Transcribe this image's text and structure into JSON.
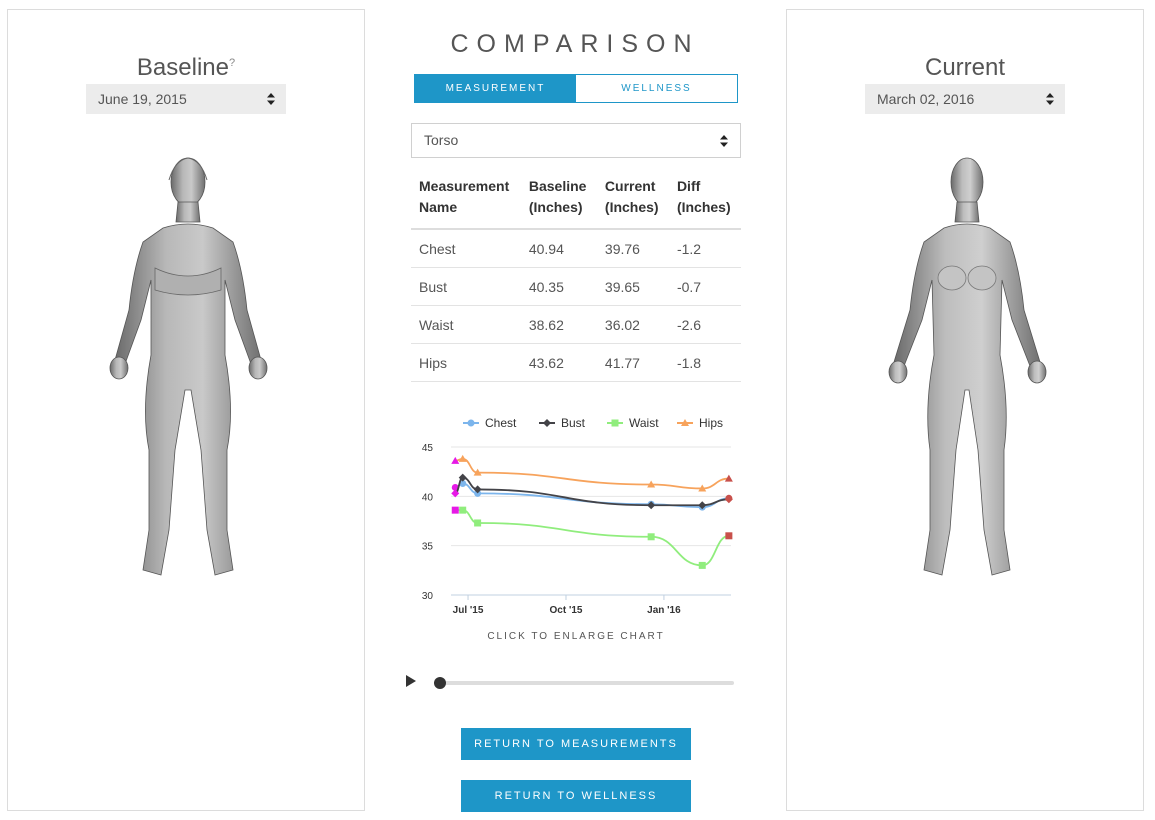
{
  "baseline": {
    "title": "Baseline",
    "help_mark": "?",
    "date": "June 19, 2015"
  },
  "current": {
    "title": "Current",
    "date": "March 02, 2016"
  },
  "comparison": {
    "title": "COMPARISON",
    "tabs": [
      {
        "label": "MEASUREMENT",
        "active": true
      },
      {
        "label": "WELLNESS",
        "active": false
      }
    ],
    "region": "Torso"
  },
  "table": {
    "headers": [
      [
        "Measurement",
        "Name"
      ],
      [
        "Baseline",
        "(Inches)"
      ],
      [
        "Current",
        "(Inches)"
      ],
      [
        "Diff",
        "(Inches)"
      ]
    ],
    "rows": [
      [
        "Chest",
        "40.94",
        "39.76",
        "-1.2"
      ],
      [
        "Bust",
        "40.35",
        "39.65",
        "-0.7"
      ],
      [
        "Waist",
        "38.62",
        "36.02",
        "-2.6"
      ],
      [
        "Hips",
        "43.62",
        "41.77",
        "-1.8"
      ]
    ]
  },
  "chart_data": {
    "type": "line",
    "x_ticks": [
      "Jul '15",
      "Oct '15",
      "Jan '16"
    ],
    "y_ticks": [
      "45",
      "40",
      "35",
      "30"
    ],
    "ylim": [
      30,
      45
    ],
    "grid": true,
    "legend_position": "top",
    "series": [
      {
        "name": "Chest",
        "color": "#7cb5ec",
        "marker": "circle",
        "points": [
          [
            "2015-06-19",
            40.9
          ],
          [
            "2015-06-26",
            41.3
          ],
          [
            "2015-07-10",
            40.3
          ],
          [
            "2015-12-20",
            39.2
          ],
          [
            "2016-02-06",
            38.9
          ],
          [
            "2016-03-02",
            39.8
          ]
        ]
      },
      {
        "name": "Bust",
        "color": "#434348",
        "marker": "diamond",
        "points": [
          [
            "2015-06-19",
            40.3
          ],
          [
            "2015-06-26",
            41.9
          ],
          [
            "2015-07-10",
            40.7
          ],
          [
            "2015-12-20",
            39.1
          ],
          [
            "2016-02-06",
            39.1
          ],
          [
            "2016-03-02",
            39.7
          ]
        ]
      },
      {
        "name": "Waist",
        "color": "#90ed7d",
        "marker": "square",
        "points": [
          [
            "2015-06-19",
            38.6
          ],
          [
            "2015-06-26",
            38.6
          ],
          [
            "2015-07-10",
            37.3
          ],
          [
            "2015-12-20",
            35.9
          ],
          [
            "2016-02-06",
            33.0
          ],
          [
            "2016-03-02",
            36.0
          ]
        ]
      },
      {
        "name": "Hips",
        "color": "#f7a35c",
        "marker": "triangle",
        "points": [
          [
            "2015-06-19",
            43.6
          ],
          [
            "2015-06-26",
            43.8
          ],
          [
            "2015-07-10",
            42.4
          ],
          [
            "2015-12-20",
            41.2
          ],
          [
            "2016-02-06",
            40.8
          ],
          [
            "2016-03-02",
            41.8
          ]
        ]
      }
    ],
    "baseline_marker_color": "#e619e6",
    "current_marker_color": "#c8504b"
  },
  "chart_hint": "CLICK TO ENLARGE CHART",
  "timeline": {
    "progress": 0
  },
  "buttons": {
    "return_measurements": "RETURN TO MEASUREMENTS",
    "return_wellness": "RETURN TO WELLNESS"
  },
  "colors": {
    "accent": "#1e96c8"
  }
}
